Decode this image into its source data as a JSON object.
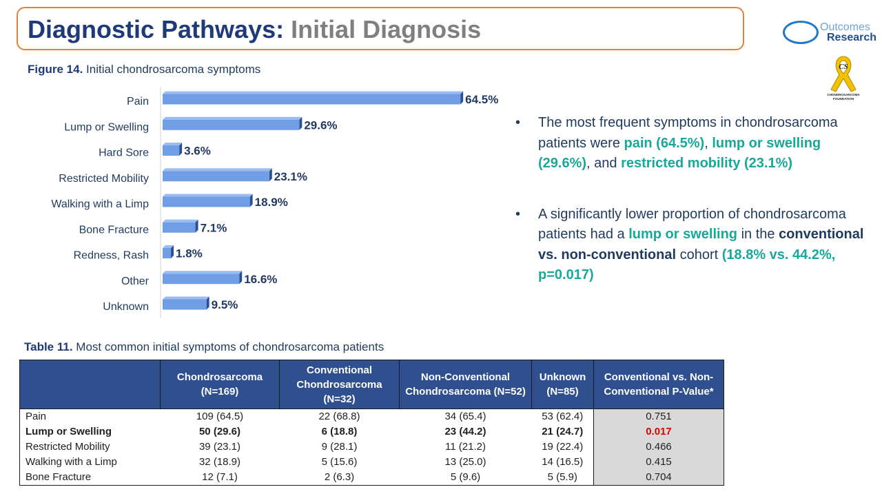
{
  "header": {
    "title_main": "Diagnostic Pathways:",
    "title_sub": "Initial Diagnosis"
  },
  "logo": {
    "line1": "Outcomes",
    "line2": "Research"
  },
  "ribbon": {
    "initials": "CS",
    "caption_top": "CHONDROSARCOMA",
    "caption_bottom": "FOUNDATION"
  },
  "figure": {
    "label": "Figure 14.",
    "caption": "Initial chondrosarcoma symptoms"
  },
  "chart_data": {
    "type": "bar",
    "orientation": "horizontal",
    "categories": [
      "Pain",
      "Lump or Swelling",
      "Hard Sore",
      "Restricted Mobility",
      "Walking with a Limp",
      "Bone Fracture",
      "Redness, Rash",
      "Other",
      "Unknown"
    ],
    "values": [
      64.5,
      29.6,
      3.6,
      23.1,
      18.9,
      7.1,
      1.8,
      16.6,
      9.5
    ],
    "data_labels": [
      "64.5%",
      "29.6%",
      "3.6%",
      "23.1%",
      "18.9%",
      "7.1%",
      "1.8%",
      "16.6%",
      "9.5%"
    ],
    "bar_color": "#6f9ee6",
    "label_color": "#1f3864",
    "xlim": [
      0,
      100
    ],
    "grid": false
  },
  "bullets": [
    {
      "segments": [
        {
          "text": "The most frequent symptoms in chondrosarcoma patients were ",
          "style": "normal"
        },
        {
          "text": "pain (64.5%)",
          "style": "highlight"
        },
        {
          "text": ", ",
          "style": "normal"
        },
        {
          "text": "lump or swelling (29.6%)",
          "style": "highlight"
        },
        {
          "text": ", and ",
          "style": "normal"
        },
        {
          "text": "restricted mobility (23.1%)",
          "style": "highlight"
        }
      ]
    },
    {
      "segments": [
        {
          "text": " A significantly lower proportion of chondrosarcoma patients had a ",
          "style": "normal"
        },
        {
          "text": "lump or swelling",
          "style": "highlight"
        },
        {
          "text": " in the ",
          "style": "normal"
        },
        {
          "text": "conventional vs. non-conventional",
          "style": "bold"
        },
        {
          "text": " cohort ",
          "style": "normal"
        },
        {
          "text": "(18.8% vs. 44.2%, p=0.017)",
          "style": "highlight"
        }
      ]
    }
  ],
  "table": {
    "label": "Table 11.",
    "caption": "Most common initial symptoms of chondrosarcoma patients",
    "headers": [
      "",
      "Chondrosarcoma (N=169)",
      "Conventional Chondrosarcoma (N=32)",
      "Non-Conventional Chondrosarcoma (N=52)",
      "Unknown (N=85)",
      "Conventional vs. Non-Conventional P-Value*"
    ],
    "rows": [
      {
        "label": "Pain",
        "values": [
          "109 (64.5)",
          "22 (68.8)",
          "34 (65.4)",
          "53 (62.4)",
          "0.751"
        ],
        "bold": false,
        "significant": false
      },
      {
        "label": "Lump or Swelling",
        "values": [
          "50 (29.6)",
          "6 (18.8)",
          "23 (44.2)",
          "21 (24.7)",
          "0.017"
        ],
        "bold": true,
        "significant": true
      },
      {
        "label": "Restricted Mobility",
        "values": [
          "39 (23.1)",
          "9 (28.1)",
          "11 (21.2)",
          "19 (22.4)",
          "0.466"
        ],
        "bold": false,
        "significant": false
      },
      {
        "label": "Walking with a Limp",
        "values": [
          "32 (18.9)",
          "5 (15.6)",
          "13 (25.0)",
          "14 (16.5)",
          "0.415"
        ],
        "bold": false,
        "significant": false
      },
      {
        "label": "Bone Fracture",
        "values": [
          "12 (7.1)",
          "2 (6.3)",
          "5 (9.6)",
          "5 (5.9)",
          "0.704"
        ],
        "bold": false,
        "significant": false
      }
    ],
    "significant_color": "#e00000"
  },
  "colors": {
    "title_main": "#1f3a78",
    "title_sub": "#7f7f7f",
    "title_border": "#ed7d31",
    "highlight": "#17a89b",
    "header_bg": "#2f4f8f",
    "pvalue_bg": "#d9d9d9"
  }
}
